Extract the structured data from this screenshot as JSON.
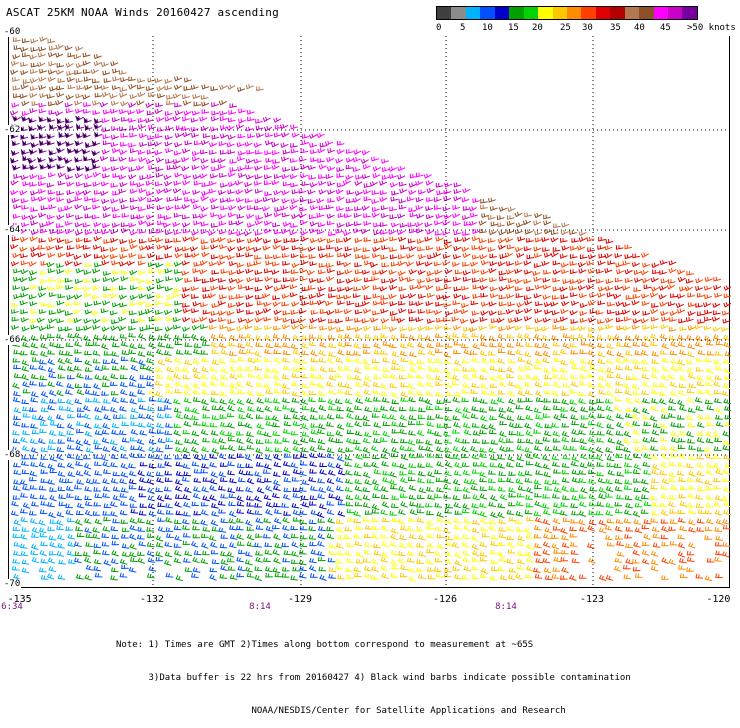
{
  "title": "ASCAT 25KM NOAA Winds 20160427 ascending",
  "legend": {
    "colors": [
      "#404040",
      "#8c8c8c",
      "#00b3ff",
      "#0050ff",
      "#0000c8",
      "#00a000",
      "#00d400",
      "#ffff00",
      "#ffc800",
      "#ff8c00",
      "#ff4000",
      "#e00000",
      "#b40000",
      "#b47850",
      "#8c5028",
      "#ff00ff",
      "#c800c8",
      "#7800a0"
    ],
    "labels": [
      "0",
      "5",
      "10",
      "15",
      "20",
      "25",
      "30",
      "35",
      "40",
      "45",
      ">50 knots"
    ],
    "label_positions": [
      0,
      1,
      2,
      3,
      4,
      5,
      6,
      7,
      8,
      9,
      10
    ]
  },
  "map": {
    "lat_labels": [
      "-60",
      "-62",
      "-64",
      "-66",
      "-68",
      "-70"
    ],
    "lon_labels": [
      "-135",
      "-132",
      "-129",
      "-126",
      "-123",
      "-120"
    ],
    "time_labels": [
      "6:34",
      "8:14",
      "8:14"
    ]
  },
  "notes": [
    "Note: 1) Times are GMT 2)Times along bottom correspond to measurement at ~65S",
    "      3)Data buffer is 22 hrs from 20160427 4) Black wind barbs indicate possible contamination",
    "                         NOAA/NESDIS/Center for Satellite Applications and Research"
  ]
}
